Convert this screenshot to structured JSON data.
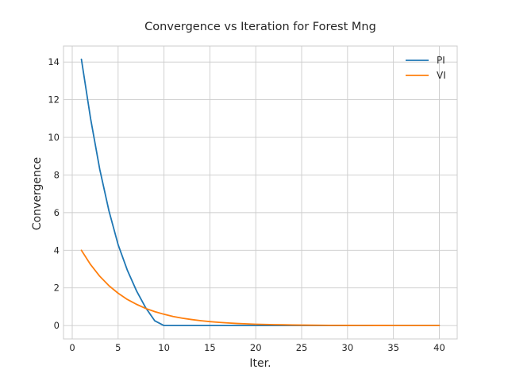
{
  "chart_data": {
    "type": "line",
    "title": "Convergence vs Iteration for Forest Mng",
    "xlabel": "Iter.",
    "ylabel": "Convergence",
    "xlim": [
      -0.95,
      41.95
    ],
    "ylim": [
      -0.71,
      14.85
    ],
    "xticks": [
      0,
      5,
      10,
      15,
      20,
      25,
      30,
      35,
      40
    ],
    "yticks": [
      0,
      2,
      4,
      6,
      8,
      10,
      12,
      14
    ],
    "grid": true,
    "legend_position": "top-right",
    "series": [
      {
        "name": "PI",
        "color": "#1f77b4",
        "x": [
          1,
          2,
          3,
          4,
          5,
          6,
          7,
          8,
          9,
          10,
          11,
          12,
          13,
          14,
          15,
          16,
          17,
          18,
          19,
          20,
          21,
          22,
          23,
          24,
          25,
          26,
          27,
          28,
          29,
          30,
          31,
          32,
          33,
          34,
          35,
          36,
          37,
          38,
          39,
          40
        ],
        "values": [
          14.15,
          11.0,
          8.3,
          6.1,
          4.3,
          2.95,
          1.85,
          0.95,
          0.25,
          0.0,
          0.0,
          0.0,
          0.0,
          0.0,
          0.0,
          0.0,
          0.0,
          0.0,
          0.0,
          0.0,
          0.0,
          0.0,
          0.0,
          0.0,
          0.0,
          0.0,
          0.0,
          0.0,
          0.0,
          0.0,
          0.0,
          0.0,
          0.0,
          0.0,
          0.0,
          0.0,
          0.0,
          0.0,
          0.0,
          0.0
        ]
      },
      {
        "name": "VI",
        "color": "#ff7f0e",
        "x": [
          1,
          2,
          3,
          4,
          5,
          6,
          7,
          8,
          9,
          10,
          11,
          12,
          13,
          14,
          15,
          16,
          17,
          18,
          19,
          20,
          21,
          22,
          23,
          24,
          25,
          26,
          27,
          28,
          29,
          30,
          31,
          32,
          33,
          34,
          35,
          36,
          37,
          38,
          39,
          40
        ],
        "values": [
          4.0,
          3.24,
          2.62,
          2.12,
          1.72,
          1.39,
          1.13,
          0.91,
          0.74,
          0.6,
          0.48,
          0.39,
          0.32,
          0.26,
          0.21,
          0.17,
          0.14,
          0.11,
          0.09,
          0.07,
          0.06,
          0.05,
          0.04,
          0.03,
          0.025,
          0.02,
          0.016,
          0.013,
          0.011,
          0.009,
          0.007,
          0.006,
          0.005,
          0.004,
          0.003,
          0.003,
          0.002,
          0.002,
          0.002,
          0.001
        ]
      }
    ]
  }
}
